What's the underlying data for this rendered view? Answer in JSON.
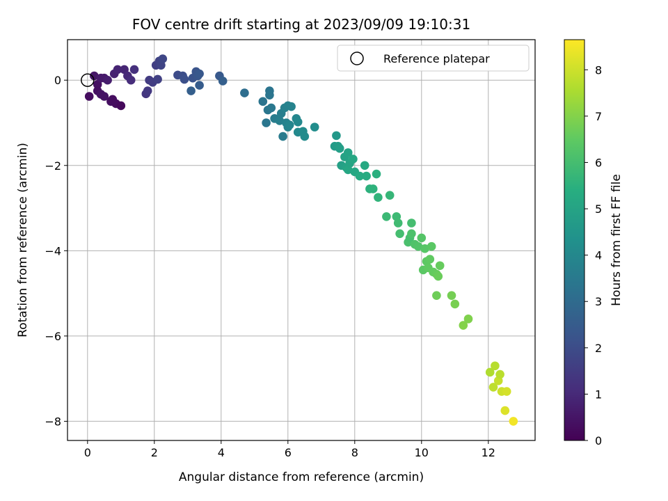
{
  "chart_data": {
    "type": "scatter",
    "title": "FOV centre drift starting at 2023/09/09 19:10:31",
    "xlabel": "Angular distance from reference (arcmin)",
    "ylabel": "Rotation from reference (arcmin)",
    "xlim": [
      -0.6,
      13.4
    ],
    "ylim": [
      -8.45,
      0.95
    ],
    "xticks": [
      0,
      2,
      4,
      6,
      8,
      10,
      12
    ],
    "yticks": [
      0,
      -2,
      -4,
      -6,
      -8
    ],
    "grid": true,
    "legend": {
      "position": "top-right",
      "entries": [
        "Reference platepar"
      ]
    },
    "reference_point": {
      "x": 0,
      "y": 0
    },
    "colorbar": {
      "label": "Hours from first FF file",
      "colormap": "viridis",
      "range": [
        0,
        8.65
      ],
      "ticks": [
        0,
        1,
        2,
        3,
        4,
        5,
        6,
        7,
        8
      ]
    },
    "points": [
      {
        "x": 0.05,
        "y": -0.38,
        "c": 0.3
      },
      {
        "x": 0.2,
        "y": 0.1,
        "c": 0.5
      },
      {
        "x": 0.3,
        "y": -0.1,
        "c": 0.4
      },
      {
        "x": 0.3,
        "y": -0.25,
        "c": 0.35
      },
      {
        "x": 0.4,
        "y": 0.05,
        "c": 0.6
      },
      {
        "x": 0.4,
        "y": -0.33,
        "c": 0.45
      },
      {
        "x": 0.5,
        "y": 0.05,
        "c": 0.6
      },
      {
        "x": 0.5,
        "y": -0.38,
        "c": 0.45
      },
      {
        "x": 0.6,
        "y": 0.0,
        "c": 0.7
      },
      {
        "x": 0.7,
        "y": -0.5,
        "c": 0.35
      },
      {
        "x": 0.75,
        "y": -0.45,
        "c": 0.3
      },
      {
        "x": 0.8,
        "y": 0.15,
        "c": 0.8
      },
      {
        "x": 0.85,
        "y": -0.55,
        "c": 0.3
      },
      {
        "x": 0.9,
        "y": 0.25,
        "c": 0.85
      },
      {
        "x": 1.0,
        "y": -0.6,
        "c": 0.2
      },
      {
        "x": 1.1,
        "y": 0.25,
        "c": 0.9
      },
      {
        "x": 1.2,
        "y": 0.1,
        "c": 1.0
      },
      {
        "x": 1.3,
        "y": 0.0,
        "c": 1.1
      },
      {
        "x": 1.4,
        "y": 0.25,
        "c": 1.2
      },
      {
        "x": 1.75,
        "y": -0.32,
        "c": 1.35
      },
      {
        "x": 1.8,
        "y": -0.25,
        "c": 1.4
      },
      {
        "x": 1.85,
        "y": 0.0,
        "c": 1.5
      },
      {
        "x": 1.95,
        "y": -0.05,
        "c": 1.55
      },
      {
        "x": 2.05,
        "y": 0.35,
        "c": 1.6
      },
      {
        "x": 2.1,
        "y": 0.02,
        "c": 1.65
      },
      {
        "x": 2.15,
        "y": 0.45,
        "c": 1.7
      },
      {
        "x": 2.2,
        "y": 0.35,
        "c": 1.75
      },
      {
        "x": 2.25,
        "y": 0.5,
        "c": 1.8
      },
      {
        "x": 2.7,
        "y": 0.12,
        "c": 2.0
      },
      {
        "x": 2.85,
        "y": 0.1,
        "c": 2.05
      },
      {
        "x": 2.9,
        "y": 0.02,
        "c": 2.1
      },
      {
        "x": 3.1,
        "y": -0.25,
        "c": 2.6
      },
      {
        "x": 3.15,
        "y": 0.05,
        "c": 2.2
      },
      {
        "x": 3.25,
        "y": 0.2,
        "c": 2.25
      },
      {
        "x": 3.3,
        "y": 0.1,
        "c": 2.3
      },
      {
        "x": 3.35,
        "y": 0.15,
        "c": 2.35
      },
      {
        "x": 3.35,
        "y": -0.12,
        "c": 2.5
      },
      {
        "x": 3.95,
        "y": 0.1,
        "c": 2.4
      },
      {
        "x": 4.05,
        "y": -0.02,
        "c": 2.6
      },
      {
        "x": 4.7,
        "y": -0.3,
        "c": 3.1
      },
      {
        "x": 5.25,
        "y": -0.5,
        "c": 3.3
      },
      {
        "x": 5.35,
        "y": -1.0,
        "c": 3.4
      },
      {
        "x": 5.4,
        "y": -0.7,
        "c": 3.4
      },
      {
        "x": 5.45,
        "y": -0.25,
        "c": 3.3
      },
      {
        "x": 5.45,
        "y": -0.35,
        "c": 3.35
      },
      {
        "x": 5.5,
        "y": -0.65,
        "c": 3.45
      },
      {
        "x": 5.6,
        "y": -0.9,
        "c": 3.6
      },
      {
        "x": 5.75,
        "y": -0.95,
        "c": 3.7
      },
      {
        "x": 5.8,
        "y": -0.78,
        "c": 3.65
      },
      {
        "x": 5.85,
        "y": -1.32,
        "c": 3.55
      },
      {
        "x": 5.9,
        "y": -0.65,
        "c": 3.75
      },
      {
        "x": 5.95,
        "y": -1.0,
        "c": 3.8
      },
      {
        "x": 6.0,
        "y": -1.1,
        "c": 3.85
      },
      {
        "x": 6.0,
        "y": -0.6,
        "c": 3.8
      },
      {
        "x": 6.05,
        "y": -1.05,
        "c": 3.9
      },
      {
        "x": 6.1,
        "y": -0.62,
        "c": 3.85
      },
      {
        "x": 6.25,
        "y": -0.9,
        "c": 3.95
      },
      {
        "x": 6.3,
        "y": -0.98,
        "c": 4.0
      },
      {
        "x": 6.3,
        "y": -1.22,
        "c": 4.05
      },
      {
        "x": 6.45,
        "y": -1.2,
        "c": 4.1
      },
      {
        "x": 6.5,
        "y": -1.32,
        "c": 4.1
      },
      {
        "x": 6.8,
        "y": -1.1,
        "c": 4.2
      },
      {
        "x": 7.4,
        "y": -1.55,
        "c": 4.7
      },
      {
        "x": 7.45,
        "y": -1.3,
        "c": 4.6
      },
      {
        "x": 7.5,
        "y": -1.55,
        "c": 4.75
      },
      {
        "x": 7.55,
        "y": -1.6,
        "c": 4.8
      },
      {
        "x": 7.6,
        "y": -2.0,
        "c": 4.9
      },
      {
        "x": 7.7,
        "y": -1.8,
        "c": 4.95
      },
      {
        "x": 7.75,
        "y": -2.05,
        "c": 5.0
      },
      {
        "x": 7.8,
        "y": -1.7,
        "c": 5.0
      },
      {
        "x": 7.8,
        "y": -2.1,
        "c": 5.1
      },
      {
        "x": 7.85,
        "y": -1.95,
        "c": 5.05
      },
      {
        "x": 7.95,
        "y": -1.85,
        "c": 5.1
      },
      {
        "x": 8.0,
        "y": -2.15,
        "c": 5.15
      },
      {
        "x": 8.15,
        "y": -2.25,
        "c": 5.25
      },
      {
        "x": 8.3,
        "y": -2.0,
        "c": 5.2
      },
      {
        "x": 8.35,
        "y": -2.25,
        "c": 5.3
      },
      {
        "x": 8.45,
        "y": -2.55,
        "c": 5.5
      },
      {
        "x": 8.55,
        "y": -2.55,
        "c": 5.55
      },
      {
        "x": 8.65,
        "y": -2.2,
        "c": 5.45
      },
      {
        "x": 8.7,
        "y": -2.75,
        "c": 5.6
      },
      {
        "x": 8.95,
        "y": -3.2,
        "c": 5.8
      },
      {
        "x": 9.05,
        "y": -2.7,
        "c": 5.7
      },
      {
        "x": 9.25,
        "y": -3.2,
        "c": 5.85
      },
      {
        "x": 9.3,
        "y": -3.35,
        "c": 5.9
      },
      {
        "x": 9.35,
        "y": -3.6,
        "c": 6.0
      },
      {
        "x": 9.6,
        "y": -3.8,
        "c": 6.1
      },
      {
        "x": 9.65,
        "y": -3.7,
        "c": 6.05
      },
      {
        "x": 9.7,
        "y": -3.6,
        "c": 6.15
      },
      {
        "x": 9.7,
        "y": -3.35,
        "c": 6.0
      },
      {
        "x": 9.8,
        "y": -3.85,
        "c": 6.2
      },
      {
        "x": 9.9,
        "y": -3.9,
        "c": 6.25
      },
      {
        "x": 10.0,
        "y": -3.7,
        "c": 6.3
      },
      {
        "x": 10.05,
        "y": -4.45,
        "c": 6.4
      },
      {
        "x": 10.1,
        "y": -3.95,
        "c": 6.35
      },
      {
        "x": 10.15,
        "y": -4.25,
        "c": 6.45
      },
      {
        "x": 10.2,
        "y": -4.4,
        "c": 6.5
      },
      {
        "x": 10.25,
        "y": -4.2,
        "c": 6.5
      },
      {
        "x": 10.3,
        "y": -3.9,
        "c": 6.4
      },
      {
        "x": 10.35,
        "y": -4.5,
        "c": 6.55
      },
      {
        "x": 10.45,
        "y": -4.55,
        "c": 6.6
      },
      {
        "x": 10.5,
        "y": -4.6,
        "c": 6.65
      },
      {
        "x": 10.55,
        "y": -4.35,
        "c": 6.6
      },
      {
        "x": 10.45,
        "y": -5.05,
        "c": 6.7
      },
      {
        "x": 10.9,
        "y": -5.05,
        "c": 6.8
      },
      {
        "x": 11.0,
        "y": -5.25,
        "c": 6.85
      },
      {
        "x": 11.25,
        "y": -5.75,
        "c": 7.0
      },
      {
        "x": 11.4,
        "y": -5.6,
        "c": 6.95
      },
      {
        "x": 12.05,
        "y": -6.85,
        "c": 7.6
      },
      {
        "x": 12.15,
        "y": -7.2,
        "c": 7.8
      },
      {
        "x": 12.2,
        "y": -6.7,
        "c": 7.7
      },
      {
        "x": 12.3,
        "y": -7.05,
        "c": 7.9
      },
      {
        "x": 12.35,
        "y": -6.9,
        "c": 7.75
      },
      {
        "x": 12.4,
        "y": -7.3,
        "c": 8.0
      },
      {
        "x": 12.5,
        "y": -7.75,
        "c": 8.2
      },
      {
        "x": 12.55,
        "y": -7.3,
        "c": 8.1
      },
      {
        "x": 12.75,
        "y": -8.0,
        "c": 8.5
      }
    ]
  }
}
